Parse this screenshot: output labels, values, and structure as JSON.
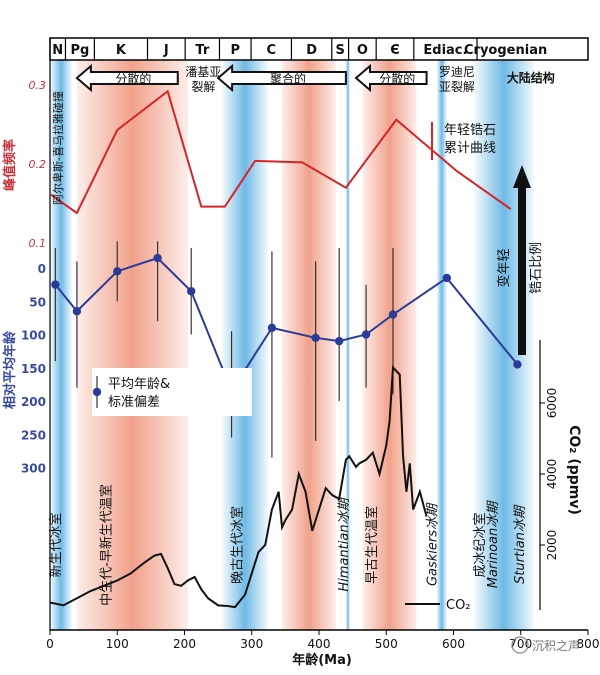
{
  "chart_data": {
    "type": "line",
    "x_axis": {
      "label": "年龄(Ma)",
      "ticks": [
        0,
        100,
        200,
        300,
        400,
        500,
        600,
        700,
        800
      ],
      "range": [
        0,
        800
      ],
      "direction": "increasing-right"
    },
    "periods": [
      {
        "label": "N",
        "start": 0,
        "end": 23
      },
      {
        "label": "Pg",
        "start": 23,
        "end": 66
      },
      {
        "label": "K",
        "start": 66,
        "end": 145
      },
      {
        "label": "J",
        "start": 145,
        "end": 201
      },
      {
        "label": "Tr",
        "start": 201,
        "end": 252
      },
      {
        "label": "P",
        "start": 252,
        "end": 299
      },
      {
        "label": "C",
        "start": 299,
        "end": 359
      },
      {
        "label": "D",
        "start": 359,
        "end": 419
      },
      {
        "label": "S",
        "start": 419,
        "end": 444
      },
      {
        "label": "O",
        "start": 444,
        "end": 485
      },
      {
        "label": "Є",
        "start": 485,
        "end": 541
      },
      {
        "label": "Ediac.",
        "start": 541,
        "end": 635
      },
      {
        "label": "Cryogenian",
        "start": 635,
        "end": 720
      }
    ],
    "supercontinent_phases": [
      {
        "label": "分散的",
        "start": 40,
        "end": 190,
        "direction": "left"
      },
      {
        "label": "潘基亚裂解",
        "at": 228
      },
      {
        "label": "聚合的",
        "start": 250,
        "end": 440,
        "direction": "left"
      },
      {
        "label": "分散的",
        "start": 455,
        "end": 560,
        "direction": "left"
      },
      {
        "label": "罗迪尼亚裂解",
        "at": 605
      },
      {
        "label": "大陆结构",
        "at": 700
      }
    ],
    "side_labels": {
      "left_vertical": "阿尔卑斯-喜马拉雅碰撞",
      "youth_scale": "变年轻",
      "zircon_ratio": "锆石比例"
    },
    "series": [
      {
        "name": "年轻锆石累计曲线",
        "axis": "峰值频率",
        "axis_ticks": [
          "0.1",
          "0.2",
          "0.3"
        ],
        "x": [
          0,
          40,
          100,
          175,
          225,
          260,
          305,
          375,
          440,
          515,
          605,
          685
        ],
        "y": [
          0.162,
          0.138,
          0.243,
          0.292,
          0.146,
          0.146,
          0.204,
          0.202,
          0.17,
          0.256,
          0.191,
          0.143
        ]
      },
      {
        "name": "平均年龄&标准偏差",
        "axis": "相对平均年龄",
        "axis_ticks": [
          0,
          50,
          100,
          150,
          200,
          250,
          300
        ],
        "points": [
          {
            "x": 8,
            "y": 25,
            "err_low": -30,
            "err_high": 140
          },
          {
            "x": 40,
            "y": 65,
            "err_low": -10,
            "err_high": 180
          },
          {
            "x": 100,
            "y": 5,
            "err_low": -40,
            "err_high": 50
          },
          {
            "x": 160,
            "y": -15,
            "err_low": -40,
            "err_high": 80
          },
          {
            "x": 210,
            "y": 35,
            "err_low": -30,
            "err_high": 100
          },
          {
            "x": 270,
            "y": 185,
            "err_low": 95,
            "err_high": 255
          },
          {
            "x": 330,
            "y": 90,
            "err_low": -25,
            "err_high": 285
          },
          {
            "x": 395,
            "y": 105,
            "err_low": -10,
            "err_high": 260
          },
          {
            "x": 430,
            "y": 110,
            "err_low": -30,
            "err_high": 200
          },
          {
            "x": 470,
            "y": 100,
            "err_low": 25,
            "err_high": 180
          },
          {
            "x": 510,
            "y": 70,
            "err_low": -30,
            "err_high": 190
          },
          {
            "x": 590,
            "y": 15,
            "err_low": 15,
            "err_high": 15
          },
          {
            "x": 695,
            "y": 145,
            "err_low": 145,
            "err_high": 145
          }
        ]
      },
      {
        "name": "CO₂",
        "axis": "CO₂ (ppmv)",
        "axis_ticks": [
          2000,
          4000,
          6000
        ],
        "x": [
          0,
          20,
          40,
          60,
          80,
          100,
          120,
          140,
          155,
          165,
          175,
          185,
          195,
          205,
          215,
          225,
          235,
          250,
          265,
          275,
          290,
          300,
          310,
          320,
          330,
          340,
          345,
          350,
          360,
          370,
          380,
          390,
          400,
          410,
          420,
          430,
          440,
          445,
          455,
          460,
          470,
          480,
          490,
          500,
          505,
          510,
          520,
          525,
          530,
          535,
          540,
          550,
          560
        ],
        "y": [
          380,
          300,
          500,
          700,
          850,
          1000,
          1200,
          1500,
          1700,
          1750,
          1350,
          900,
          850,
          1000,
          1100,
          750,
          500,
          300,
          280,
          250,
          600,
          1200,
          1800,
          2000,
          3000,
          3500,
          2500,
          2700,
          3000,
          4000,
          3500,
          2400,
          3000,
          3600,
          3400,
          3300,
          4400,
          4500,
          4200,
          4300,
          4400,
          4600,
          4000,
          4800,
          5500,
          7000,
          6800,
          4500,
          3500,
          4300,
          3000,
          3500,
          2800
        ]
      }
    ],
    "bands": {
      "glaciation_blue": [
        [
          0,
          33
        ],
        [
          255,
          325
        ],
        [
          440,
          446
        ],
        [
          575,
          590
        ],
        [
          630,
          720
        ]
      ],
      "greenhouse_red": [
        [
          40,
          205
        ],
        [
          345,
          425
        ],
        [
          465,
          545
        ]
      ]
    },
    "vertical_annotations": [
      {
        "text": "新生代冰室",
        "x": 15
      },
      {
        "text": "中生代-早新生代温室",
        "x": 90
      },
      {
        "text": "晚古生代冰室",
        "x": 285
      },
      {
        "text": "Himantian冰期",
        "x": 443
      },
      {
        "text": "早古生代温室",
        "x": 485
      },
      {
        "text": "Gaskiers冰期",
        "x": 575
      },
      {
        "text": "成冰纪冰室",
        "x": 645
      },
      {
        "text": "Marinoan冰期",
        "x": 665
      },
      {
        "text": "Sturtian冰期",
        "x": 705
      }
    ],
    "legend": {
      "zircon_curve": "年轻锆石累计曲线",
      "mean_age": "平均年龄&标准偏差",
      "co2": "CO₂"
    },
    "watermark": "沉积之声"
  },
  "colors": {
    "red_curve": "#d4252a",
    "blue_series": "#2b3b98",
    "co2_line": "#111111",
    "blue_band": "#55aee1",
    "red_band": "#ee8a6e",
    "red_axis_text": "#c8323c",
    "blue_axis_text": "#3a4aa0"
  }
}
